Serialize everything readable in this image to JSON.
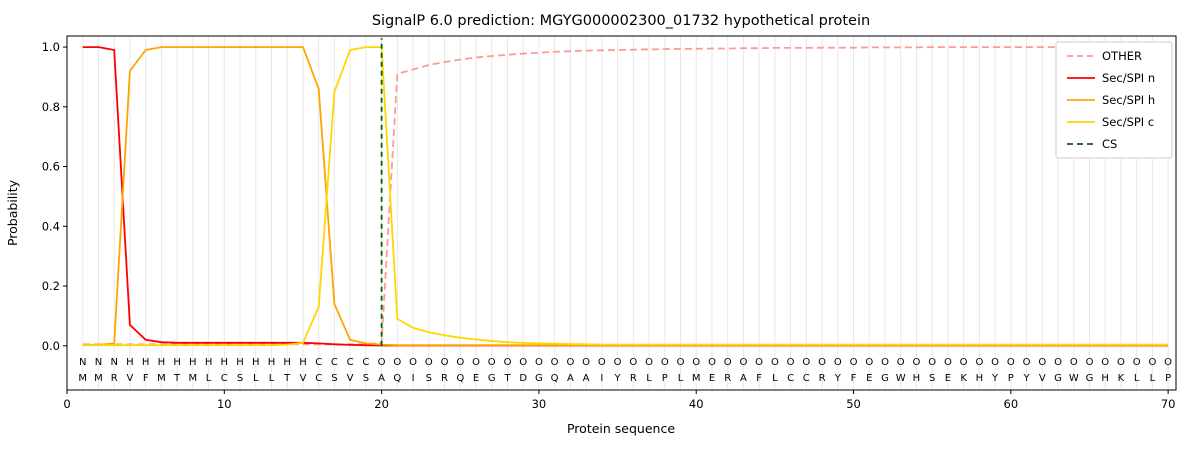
{
  "chart_data": {
    "type": "line",
    "title": "SignalP 6.0 prediction: MGYG000002300_01732 hypothetical protein",
    "xlabel": "Protein sequence",
    "ylabel": "Probability",
    "x_ticks": [
      0,
      10,
      20,
      30,
      40,
      50,
      60,
      70
    ],
    "y_ticks": [
      0,
      0.2,
      0.4,
      0.6,
      0.8,
      1
    ],
    "xlim": [
      0,
      70.5
    ],
    "ylim_plot": [
      0,
      1
    ],
    "grid": "vertical line per residue",
    "legend_position": "upper right",
    "colors": {
      "grid": "#e8e8e8",
      "frame": "#000000",
      "sequence_text": "#3d3d3d",
      "region_N": "#ff0000",
      "region_H": "#ffa500",
      "region_C": "#ffd700",
      "region_O": "#bdbdbd"
    },
    "series": [
      {
        "name": "OTHER",
        "color": "#ff9896",
        "dash": true,
        "values": [
          0.005,
          0.005,
          0.005,
          0.005,
          0.005,
          0.005,
          0.005,
          0.005,
          0.005,
          0.005,
          0.005,
          0.005,
          0.005,
          0.005,
          0.005,
          0.005,
          0.005,
          0.005,
          0.005,
          0.01,
          0.91,
          0.925,
          0.94,
          0.95,
          0.958,
          0.965,
          0.97,
          0.974,
          0.978,
          0.981,
          0.984,
          0.986,
          0.988,
          0.989,
          0.99,
          0.991,
          0.992,
          0.993,
          0.994,
          0.994,
          0.995,
          0.995,
          0.996,
          0.996,
          0.997,
          0.997,
          0.997,
          0.998,
          0.998,
          0.998,
          0.999,
          0.999,
          0.999,
          0.999,
          1.0,
          1.0,
          1.0,
          1.0,
          1.0,
          1.0,
          1.0,
          1.0,
          1.0,
          1.0,
          1.0,
          1.0,
          1.0,
          1.0,
          1.0,
          1.0
        ]
      },
      {
        "name": "Sec/SPI n",
        "color": "#ff0000",
        "dash": false,
        "values": [
          1.0,
          1.0,
          0.99,
          0.07,
          0.02,
          0.012,
          0.01,
          0.01,
          0.01,
          0.01,
          0.01,
          0.01,
          0.01,
          0.01,
          0.01,
          0.008,
          0.005,
          0.003,
          0.002,
          0.001,
          0.001,
          0.001,
          0.001,
          0.001,
          0.001,
          0.001,
          0.001,
          0.001,
          0.001,
          0.001,
          0.001,
          0.001,
          0.001,
          0.001,
          0.001,
          0.001,
          0.001,
          0.001,
          0.001,
          0.001,
          0.001,
          0.001,
          0.001,
          0.001,
          0.001,
          0.001,
          0.001,
          0.001,
          0.001,
          0.001,
          0.001,
          0.001,
          0.001,
          0.001,
          0.001,
          0.001,
          0.001,
          0.001,
          0.001,
          0.001,
          0.001,
          0.001,
          0.001,
          0.001,
          0.001,
          0.001,
          0.001,
          0.001,
          0.001,
          0.001
        ]
      },
      {
        "name": "Sec/SPI h",
        "color": "#ffa500",
        "dash": false,
        "values": [
          0.003,
          0.003,
          0.008,
          0.92,
          0.99,
          1.0,
          1.0,
          1.0,
          1.0,
          1.0,
          1.0,
          1.0,
          1.0,
          1.0,
          1.0,
          0.86,
          0.14,
          0.02,
          0.008,
          0.004,
          0.002,
          0.002,
          0.002,
          0.002,
          0.002,
          0.002,
          0.002,
          0.002,
          0.002,
          0.002,
          0.002,
          0.002,
          0.002,
          0.002,
          0.002,
          0.002,
          0.002,
          0.002,
          0.002,
          0.002,
          0.002,
          0.002,
          0.002,
          0.002,
          0.002,
          0.002,
          0.002,
          0.002,
          0.002,
          0.002,
          0.002,
          0.002,
          0.002,
          0.002,
          0.002,
          0.002,
          0.002,
          0.002,
          0.002,
          0.002,
          0.002,
          0.002,
          0.002,
          0.002,
          0.002,
          0.002,
          0.002,
          0.002,
          0.002,
          0.002
        ]
      },
      {
        "name": "Sec/SPI c",
        "color": "#ffd700",
        "dash": false,
        "values": [
          0.002,
          0.002,
          0.002,
          0.002,
          0.002,
          0.002,
          0.002,
          0.002,
          0.002,
          0.002,
          0.002,
          0.002,
          0.002,
          0.004,
          0.01,
          0.13,
          0.85,
          0.99,
          1.0,
          1.0,
          0.09,
          0.06,
          0.045,
          0.035,
          0.027,
          0.021,
          0.016,
          0.012,
          0.01,
          0.008,
          0.007,
          0.006,
          0.005,
          0.004,
          0.004,
          0.004,
          0.004,
          0.004,
          0.004,
          0.004,
          0.004,
          0.004,
          0.004,
          0.004,
          0.004,
          0.004,
          0.004,
          0.004,
          0.004,
          0.004,
          0.004,
          0.004,
          0.004,
          0.004,
          0.004,
          0.004,
          0.004,
          0.004,
          0.004,
          0.004,
          0.004,
          0.004,
          0.004,
          0.004,
          0.004,
          0.004,
          0.004,
          0.004,
          0.004,
          0.004
        ]
      }
    ],
    "cs_line": {
      "x": 20,
      "color": "#006400",
      "dash": true,
      "label": "CS"
    },
    "legend": [
      {
        "label": "OTHER",
        "color": "#ff9896",
        "dash": true
      },
      {
        "label": "Sec/SPI n",
        "color": "#ff0000",
        "dash": false
      },
      {
        "label": "Sec/SPI h",
        "color": "#ffa500",
        "dash": false
      },
      {
        "label": "Sec/SPI c",
        "color": "#ffd700",
        "dash": false
      },
      {
        "label": "CS",
        "color": "#006400",
        "dash": true
      }
    ],
    "sequence": "MMRVFMTMLCSLLTVCSVSAQISRQEGTDGQAAIYRLPLMERAFLCCRYFEGWHSEKHYPYVGWGHKLLP",
    "regions": "NNNHHHHHHHHHHHHCCCCOOOOOOOOOOOOOOOOOOOOOOOOOOOOOOOOOOOOOOOOOOOOOOOOOO"
  }
}
